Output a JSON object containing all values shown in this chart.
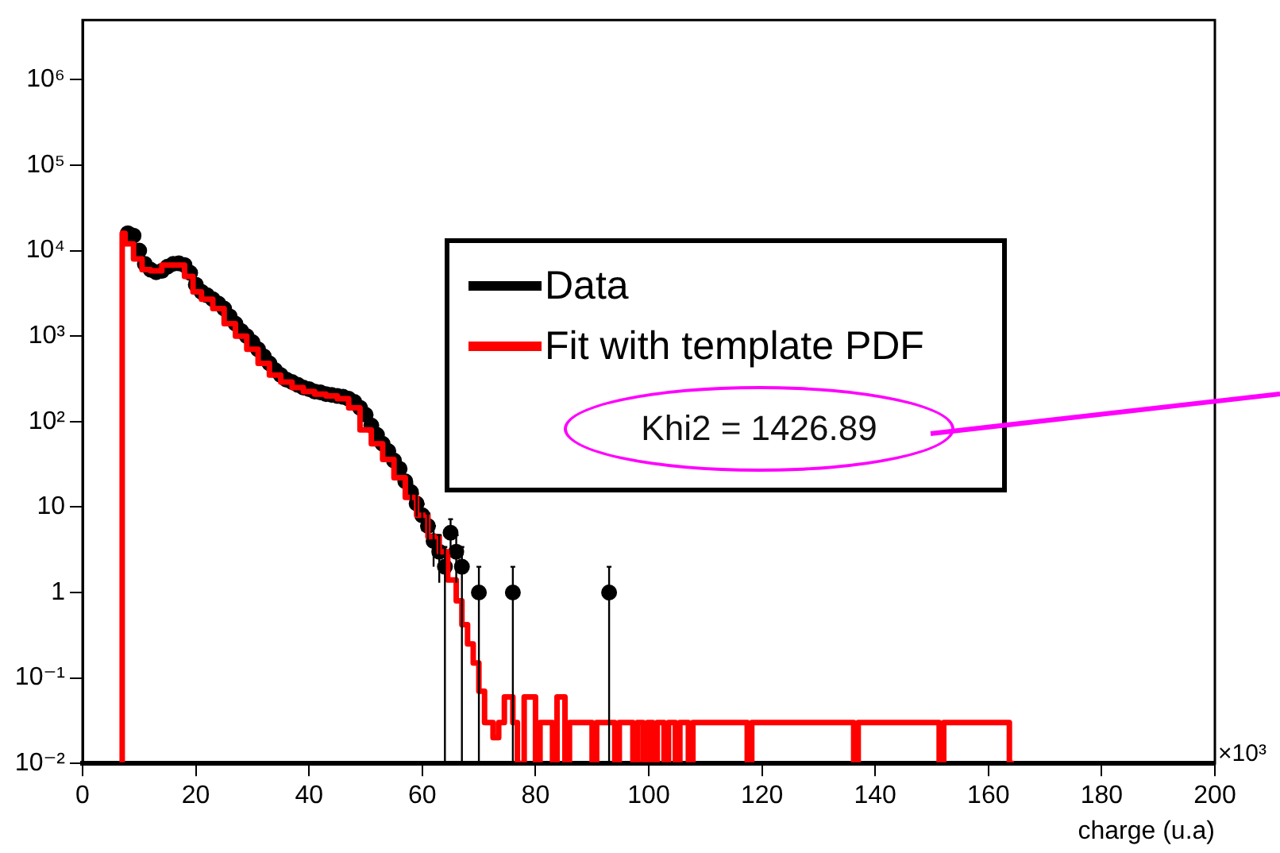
{
  "chart_data": {
    "type": "scatter",
    "xlabel": "charge (u.a)",
    "annotations": [
      "×10³",
      "Khi2 = 1426.89"
    ],
    "xlim": [
      0,
      200
    ],
    "xticks": [
      0,
      20,
      40,
      60,
      80,
      100,
      120,
      140,
      160,
      180,
      200
    ],
    "ylim": [
      0.01,
      5000000
    ],
    "log": "y",
    "yticks": [
      {
        "value": 0.01,
        "label": "10⁻²"
      },
      {
        "value": 0.1,
        "label": "10⁻¹"
      },
      1,
      10,
      {
        "value": 100,
        "label": "10²"
      },
      {
        "value": 1000,
        "label": "10³"
      },
      {
        "value": 10000,
        "label": "10⁴"
      },
      {
        "value": 100000,
        "label": "10⁵"
      },
      {
        "value": 1000000,
        "label": "10⁶"
      }
    ],
    "grid": false,
    "legend": "right",
    "series": [
      {
        "name": "Data",
        "type": "scatter",
        "color": "#000000",
        "marker": "circle",
        "x": [
          8,
          9,
          10,
          11,
          12,
          13,
          14,
          15,
          16,
          17,
          18,
          19,
          20,
          21,
          22,
          23,
          24,
          25,
          26,
          27,
          28,
          29,
          30,
          31,
          32,
          33,
          34,
          35,
          36,
          37,
          38,
          39,
          40,
          41,
          42,
          43,
          44,
          45,
          46,
          47,
          48,
          49,
          50,
          51,
          52,
          53,
          54,
          55,
          56,
          57,
          58,
          59,
          60,
          61,
          62,
          63,
          64,
          65,
          66,
          67,
          70,
          76,
          93
        ],
        "values": [
          16000,
          15000,
          10000,
          7000,
          6000,
          5600,
          5800,
          6500,
          7000,
          7100,
          6800,
          5500,
          4000,
          3300,
          3000,
          2700,
          2400,
          2100,
          1700,
          1400,
          1150,
          1000,
          850,
          700,
          580,
          480,
          400,
          350,
          310,
          290,
          270,
          250,
          240,
          225,
          220,
          210,
          205,
          200,
          195,
          185,
          170,
          145,
          120,
          90,
          70,
          55,
          45,
          35,
          28,
          20,
          15,
          11,
          8,
          6,
          4,
          3,
          2,
          5,
          3,
          2,
          1,
          1,
          1
        ],
        "errors": [
          null,
          null,
          null,
          null,
          null,
          null,
          null,
          null,
          null,
          null,
          null,
          null,
          null,
          null,
          null,
          null,
          null,
          null,
          null,
          null,
          null,
          null,
          null,
          null,
          null,
          null,
          null,
          null,
          null,
          null,
          null,
          null,
          null,
          null,
          null,
          null,
          null,
          null,
          null,
          null,
          null,
          null,
          null,
          null,
          null,
          null,
          null,
          null,
          null,
          null,
          [
            11.1,
            18.9
          ],
          [
            7.7,
            14.3
          ],
          [
            5.2,
            10.8
          ],
          [
            3.6,
            8.4
          ],
          [
            2,
            6
          ],
          [
            1.3,
            4.7
          ],
          [
            0.01,
            3.4
          ],
          [
            2.8,
            7.2
          ],
          [
            1.3,
            4.7
          ],
          [
            0.01,
            3.4
          ],
          [
            0.01,
            2
          ],
          [
            0.01,
            2
          ],
          [
            0.01,
            2
          ]
        ]
      },
      {
        "name": "Fit with template PDF",
        "type": "step",
        "color": "#ff0000",
        "marker": "none",
        "line_style": "solid",
        "x": [
          7,
          7.5,
          9,
          10.5,
          12,
          14,
          16,
          18,
          19.5,
          21,
          23,
          25,
          27,
          29,
          31,
          33,
          35,
          37,
          39,
          41,
          43,
          45,
          47,
          49,
          51,
          53,
          55,
          57,
          59,
          61,
          63,
          64.5,
          66,
          67,
          68,
          69,
          70,
          71,
          72.5,
          73.5,
          74.5,
          76,
          76.8,
          78,
          80,
          80.8,
          83,
          83.8,
          85.2,
          86,
          90,
          90.8,
          94,
          94.8,
          97.2,
          98,
          99,
          99.8,
          100.7,
          101.5,
          102.7,
          103.5,
          104.7,
          105.5,
          107,
          107.8,
          117.4,
          118.2,
          136.2,
          137,
          151.3,
          152.1,
          163.7,
          164.5
        ],
        "values": [
          0.01,
          16000,
          12000,
          8000,
          6000,
          5800,
          6800,
          6800,
          5000,
          3300,
          2700,
          2100,
          1400,
          1000,
          700,
          480,
          350,
          290,
          250,
          225,
          210,
          200,
          185,
          145,
          80,
          55,
          36,
          22,
          13,
          8,
          4.5,
          3,
          1.4,
          0.8,
          0.42,
          0.25,
          0.15,
          0.07,
          0.03,
          0.02,
          0.03,
          0.06,
          0.03,
          0.01,
          0.06,
          0.01,
          0.03,
          0.01,
          0.06,
          0.01,
          0.03,
          0.01,
          0.03,
          0.01,
          0.03,
          0.01,
          0.03,
          0.01,
          0.03,
          0.01,
          0.03,
          0.01,
          0.03,
          0.01,
          0.03,
          0.01,
          0.03,
          0.01,
          0.03,
          0.01,
          0.03,
          0.01,
          0.03,
          0.01
        ]
      }
    ]
  }
}
